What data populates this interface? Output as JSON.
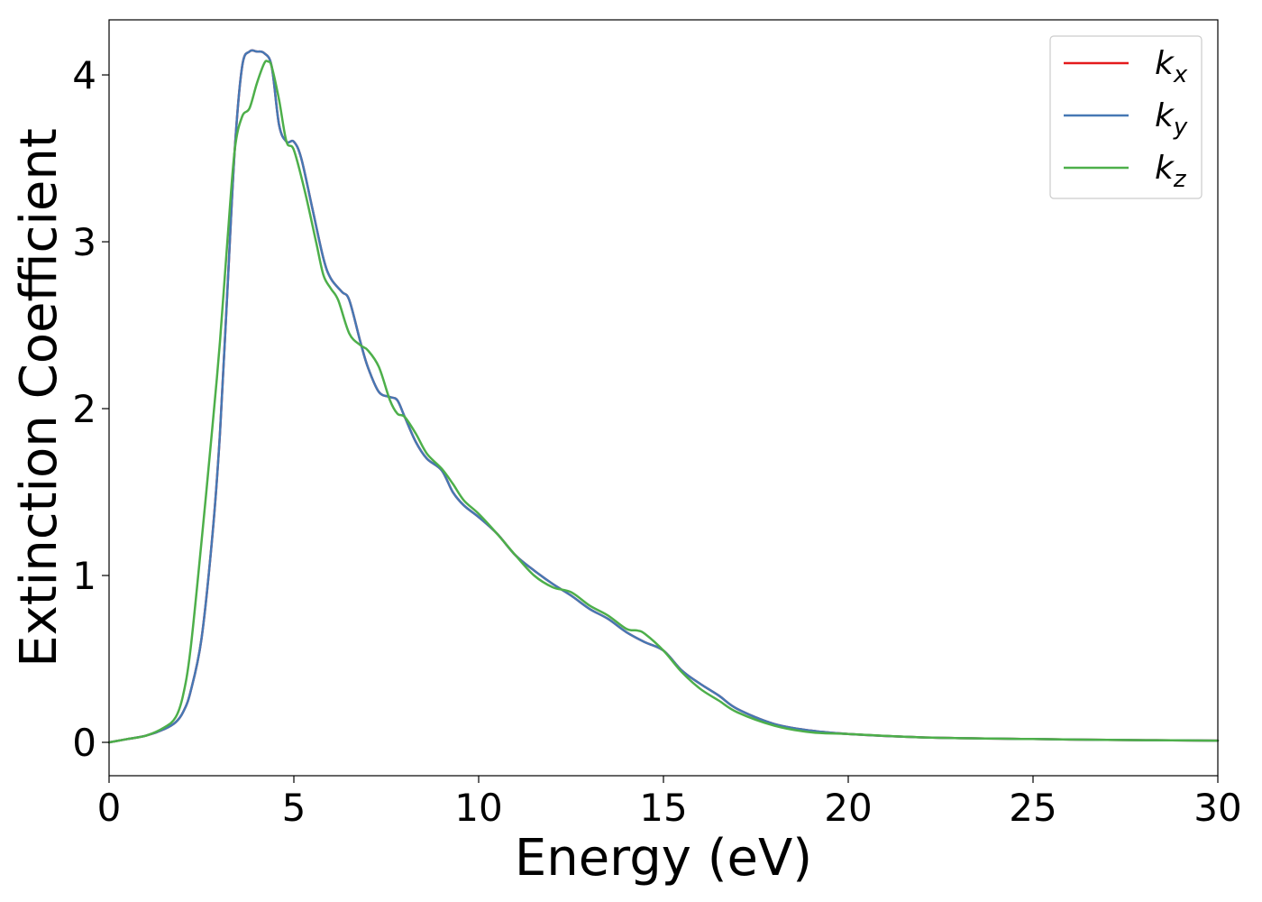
{
  "chart_data": {
    "type": "line",
    "title": "",
    "xlabel": "Energy (eV)",
    "ylabel": "Extinction Coefficient",
    "xlim": [
      0,
      30
    ],
    "ylim": [
      -0.2,
      4.33
    ],
    "xticks": [
      0,
      5,
      10,
      15,
      20,
      25,
      30
    ],
    "yticks": [
      0,
      1,
      2,
      3,
      4
    ],
    "grid": false,
    "legend_position": "top-right",
    "series": [
      {
        "name": "k_x",
        "label_base": "k",
        "label_sub": "x",
        "color": "#e41a1c",
        "x": [
          0,
          0.5,
          1,
          1.5,
          1.8,
          2,
          2.2,
          2.5,
          2.8,
          3,
          3.2,
          3.4,
          3.6,
          3.8,
          4,
          4.2,
          4.4,
          4.6,
          4.8,
          5,
          5.2,
          5.5,
          5.8,
          6,
          6.3,
          6.5,
          6.8,
          7,
          7.3,
          7.6,
          7.8,
          8,
          8.3,
          8.6,
          9,
          9.3,
          9.6,
          10,
          10.5,
          11,
          11.5,
          12,
          12.5,
          13,
          13.5,
          14,
          14.5,
          15,
          15.5,
          16,
          16.5,
          17,
          18,
          19,
          20,
          22,
          25,
          27,
          30
        ],
        "y": [
          0,
          0.02,
          0.04,
          0.08,
          0.12,
          0.18,
          0.3,
          0.62,
          1.25,
          1.85,
          2.7,
          3.55,
          4.05,
          4.14,
          4.14,
          4.13,
          4.05,
          3.7,
          3.6,
          3.6,
          3.5,
          3.2,
          2.9,
          2.78,
          2.7,
          2.65,
          2.4,
          2.25,
          2.1,
          2.07,
          2.05,
          1.95,
          1.8,
          1.7,
          1.63,
          1.5,
          1.42,
          1.35,
          1.25,
          1.12,
          1.03,
          0.95,
          0.88,
          0.8,
          0.74,
          0.66,
          0.6,
          0.55,
          0.43,
          0.35,
          0.28,
          0.2,
          0.11,
          0.07,
          0.05,
          0.03,
          0.02,
          0.015,
          0.01
        ]
      },
      {
        "name": "k_y",
        "label_base": "k",
        "label_sub": "y",
        "color": "#4678b4",
        "x": [
          0,
          0.5,
          1,
          1.5,
          1.8,
          2,
          2.2,
          2.5,
          2.8,
          3,
          3.2,
          3.4,
          3.6,
          3.8,
          4,
          4.2,
          4.4,
          4.6,
          4.8,
          5,
          5.2,
          5.5,
          5.8,
          6,
          6.3,
          6.5,
          6.8,
          7,
          7.3,
          7.6,
          7.8,
          8,
          8.3,
          8.6,
          9,
          9.3,
          9.6,
          10,
          10.5,
          11,
          11.5,
          12,
          12.5,
          13,
          13.5,
          14,
          14.5,
          15,
          15.5,
          16,
          16.5,
          17,
          18,
          19,
          20,
          22,
          25,
          27,
          30
        ],
        "y": [
          0,
          0.02,
          0.04,
          0.08,
          0.12,
          0.18,
          0.3,
          0.62,
          1.25,
          1.85,
          2.7,
          3.55,
          4.05,
          4.14,
          4.14,
          4.13,
          4.05,
          3.7,
          3.6,
          3.6,
          3.5,
          3.2,
          2.9,
          2.78,
          2.7,
          2.65,
          2.4,
          2.25,
          2.1,
          2.07,
          2.05,
          1.95,
          1.8,
          1.7,
          1.63,
          1.5,
          1.42,
          1.35,
          1.25,
          1.12,
          1.03,
          0.95,
          0.88,
          0.8,
          0.74,
          0.66,
          0.6,
          0.55,
          0.43,
          0.35,
          0.28,
          0.2,
          0.11,
          0.07,
          0.05,
          0.03,
          0.02,
          0.015,
          0.01
        ]
      },
      {
        "name": "k_z",
        "label_base": "k",
        "label_sub": "z",
        "color": "#4daf4a",
        "x": [
          0,
          0.5,
          1,
          1.5,
          1.8,
          2,
          2.2,
          2.5,
          2.8,
          3,
          3.2,
          3.4,
          3.6,
          3.8,
          4,
          4.2,
          4.3,
          4.4,
          4.6,
          4.8,
          5,
          5.3,
          5.6,
          5.8,
          6,
          6.2,
          6.5,
          6.8,
          7,
          7.3,
          7.6,
          7.8,
          8,
          8.3,
          8.6,
          9,
          9.3,
          9.6,
          10,
          10.5,
          11,
          11.5,
          12,
          12.5,
          13,
          13.5,
          14,
          14.3,
          14.5,
          15,
          15.5,
          16,
          16.5,
          17,
          18,
          19,
          20,
          22,
          25,
          27,
          30
        ],
        "y": [
          0,
          0.02,
          0.04,
          0.09,
          0.15,
          0.28,
          0.55,
          1.2,
          1.9,
          2.4,
          3.0,
          3.55,
          3.75,
          3.8,
          3.95,
          4.07,
          4.08,
          4.05,
          3.85,
          3.6,
          3.55,
          3.3,
          3.0,
          2.8,
          2.72,
          2.65,
          2.45,
          2.38,
          2.35,
          2.25,
          2.05,
          1.97,
          1.95,
          1.85,
          1.73,
          1.64,
          1.55,
          1.45,
          1.37,
          1.25,
          1.12,
          1.0,
          0.93,
          0.9,
          0.82,
          0.76,
          0.68,
          0.67,
          0.65,
          0.55,
          0.42,
          0.32,
          0.25,
          0.18,
          0.1,
          0.06,
          0.05,
          0.03,
          0.02,
          0.015,
          0.01
        ]
      }
    ]
  }
}
